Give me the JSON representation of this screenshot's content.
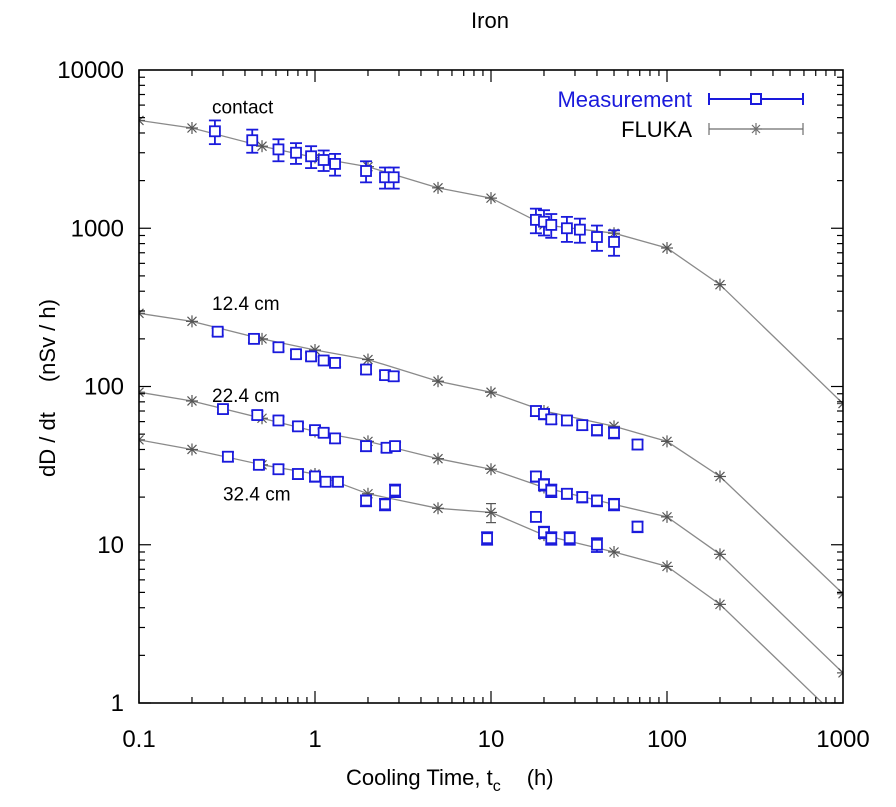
{
  "chart_data": {
    "type": "scatter",
    "title": "Iron",
    "xlabel": "Cooling Time, t",
    "xlabel_sub": "c",
    "xlabel_unit": "(h)",
    "ylabel": "dD / dt",
    "ylabel_unit": "(nSv / h)",
    "xscale": "log",
    "yscale": "log",
    "xlim": [
      0.1,
      1000
    ],
    "ylim": [
      1,
      10000
    ],
    "x_ticks": [
      0.1,
      1,
      10,
      100,
      1000
    ],
    "x_tick_labels": [
      "0.1",
      "1",
      "10",
      "100",
      "1000"
    ],
    "y_ticks": [
      1,
      10,
      100,
      1000,
      10000
    ],
    "y_tick_labels": [
      "1",
      "10",
      "100",
      "1000",
      "10000"
    ],
    "grid": false,
    "legend_position": "top-right",
    "legend": [
      {
        "label": "Measurement",
        "color": "#1a1adc",
        "marker": "open-square"
      },
      {
        "label": "FLUKA",
        "color": "#6e6e6e",
        "marker": "asterisk"
      }
    ],
    "annotations": [
      {
        "text": "contact",
        "x": 0.26,
        "y": 5300
      },
      {
        "text": "12.4 cm",
        "x": 0.26,
        "y": 305
      },
      {
        "text": "22.4 cm",
        "x": 0.26,
        "y": 80
      },
      {
        "text": "32.4 cm",
        "x": 0.3,
        "y": 19
      }
    ],
    "series": [
      {
        "name": "FLUKA",
        "group": "contact",
        "style": "line-asterisk",
        "x": [
          0.1,
          0.2,
          0.5,
          1,
          2,
          5,
          10,
          20,
          50,
          100,
          200,
          1000
        ],
        "y": [
          4800,
          4300,
          3300,
          2800,
          2450,
          1800,
          1550,
          1050,
          930,
          750,
          440,
          78
        ]
      },
      {
        "name": "FLUKA",
        "group": "12.4 cm",
        "style": "line-asterisk",
        "x": [
          0.1,
          0.2,
          0.5,
          1,
          2,
          5,
          10,
          20,
          50,
          100,
          200,
          1000
        ],
        "y": [
          290,
          258,
          200,
          170,
          148,
          108,
          92,
          70,
          56,
          45,
          27,
          4.9
        ]
      },
      {
        "name": "FLUKA",
        "group": "22.4 cm",
        "style": "line-asterisk",
        "x": [
          0.1,
          0.2,
          0.5,
          1,
          2,
          5,
          10,
          20,
          50,
          100,
          200,
          1000
        ],
        "y": [
          92,
          81,
          63,
          52,
          45,
          35,
          30,
          23,
          18,
          15,
          8.7,
          1.55
        ]
      },
      {
        "name": "FLUKA",
        "group": "32.4 cm",
        "style": "line-asterisk",
        "x": [
          0.1,
          0.2,
          0.5,
          1,
          2,
          5,
          10,
          20,
          50,
          100,
          200,
          1000
        ],
        "y": [
          46,
          40,
          32,
          28,
          21,
          17,
          16,
          11.5,
          9,
          7.3,
          4.2,
          0.75
        ],
        "err": [
          0,
          0,
          0,
          0,
          0,
          0,
          2.2,
          0,
          0,
          0,
          0,
          0
        ]
      },
      {
        "name": "Measurement",
        "group": "contact",
        "style": "square-errorbar",
        "x": [
          0.27,
          0.44,
          0.62,
          0.78,
          0.95,
          1.12,
          1.3,
          1.95,
          2.5,
          2.8,
          18,
          20,
          22,
          27,
          32,
          40,
          50
        ],
        "y": [
          4100,
          3600,
          3150,
          3000,
          2850,
          2700,
          2550,
          2300,
          2100,
          2100,
          1130,
          1100,
          1050,
          1000,
          980,
          880,
          820
        ],
        "err": [
          700,
          600,
          500,
          450,
          450,
          400,
          400,
          350,
          320,
          320,
          200,
          200,
          180,
          180,
          170,
          160,
          150
        ]
      },
      {
        "name": "Measurement",
        "group": "12.4 cm",
        "style": "square-errorbar",
        "x": [
          0.28,
          0.45,
          0.62,
          0.78,
          0.95,
          1.12,
          1.3,
          1.95,
          2.5,
          2.8,
          18,
          20,
          22,
          27,
          33,
          40,
          50,
          68
        ],
        "y": [
          222,
          200,
          177,
          160,
          155,
          146,
          141,
          128,
          118,
          116,
          70,
          67,
          62,
          61,
          57,
          53,
          51,
          43
        ],
        "err": [
          12,
          11,
          10,
          9,
          9,
          8,
          8,
          8,
          7,
          7,
          5,
          5,
          4,
          4,
          4,
          4,
          4,
          3
        ]
      },
      {
        "name": "Measurement",
        "group": "22.4 cm",
        "style": "square-errorbar",
        "x": [
          0.3,
          0.47,
          0.62,
          0.8,
          1.0,
          1.12,
          1.3,
          1.95,
          2.55,
          2.85,
          18,
          20,
          22,
          27,
          33,
          40,
          50,
          68
        ],
        "y": [
          72,
          66,
          61,
          56,
          53,
          51,
          47,
          42,
          41,
          42,
          27,
          24,
          22,
          21,
          20,
          19,
          18,
          13
        ],
        "err": [
          4,
          4,
          3.5,
          3,
          3,
          3,
          3,
          3,
          2.5,
          2.5,
          2,
          2,
          2,
          1.5,
          1.5,
          1.5,
          1.5,
          1
        ]
      },
      {
        "name": "Measurement",
        "group": "32.4 cm",
        "style": "square-errorbar",
        "x": [
          0.32,
          0.48,
          0.62,
          0.8,
          1.0,
          1.15,
          1.35,
          1.95,
          2.5,
          2.85,
          9.5,
          18,
          20,
          22,
          28,
          40
        ],
        "y": [
          36,
          32,
          30,
          28,
          27,
          25,
          25,
          19,
          18,
          22,
          11,
          15,
          12,
          11,
          11,
          10
        ],
        "err": [
          2.5,
          2,
          2,
          2,
          2,
          1.5,
          1.5,
          1.5,
          1.5,
          2,
          1,
          1,
          1,
          1,
          1,
          1
        ]
      }
    ]
  }
}
